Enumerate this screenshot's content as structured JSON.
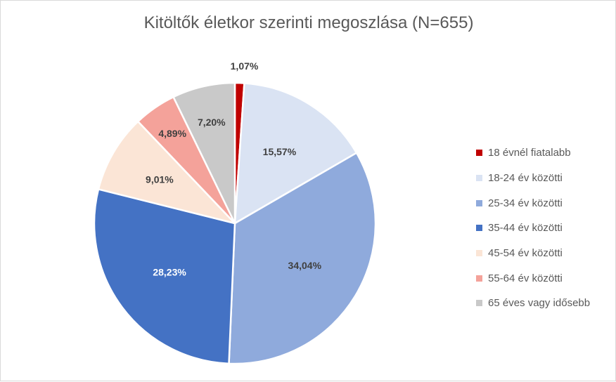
{
  "chart_data": {
    "type": "pie",
    "title": "Kitöltők életkor szerinti megoszlása (N=655)",
    "legend_position": "right",
    "slices": [
      {
        "label": "18 évnél fiatalabb",
        "value": 1.07,
        "value_label": "1,07%",
        "color": "#c00000",
        "label_color": "#404040"
      },
      {
        "label": "18-24 év közötti",
        "value": 15.57,
        "value_label": "15,57%",
        "color": "#dae3f3",
        "label_color": "#404040"
      },
      {
        "label": "25-34 év közötti",
        "value": 34.04,
        "value_label": "34,04%",
        "color": "#8faadc",
        "label_color": "#404040"
      },
      {
        "label": "35-44 év közötti",
        "value": 28.23,
        "value_label": "28,23%",
        "color": "#4472c4",
        "label_color": "#ffffff"
      },
      {
        "label": "45-54 év közötti",
        "value": 9.01,
        "value_label": "9,01%",
        "color": "#fbe5d6",
        "label_color": "#404040"
      },
      {
        "label": "55-64 év közötti",
        "value": 4.89,
        "value_label": "4,89%",
        "color": "#f4a29a",
        "label_color": "#404040"
      },
      {
        "label": "65 éves vagy idősebb",
        "value": 7.2,
        "value_label": "7,20%",
        "color": "#c9c9c9",
        "label_color": "#404040"
      }
    ]
  }
}
